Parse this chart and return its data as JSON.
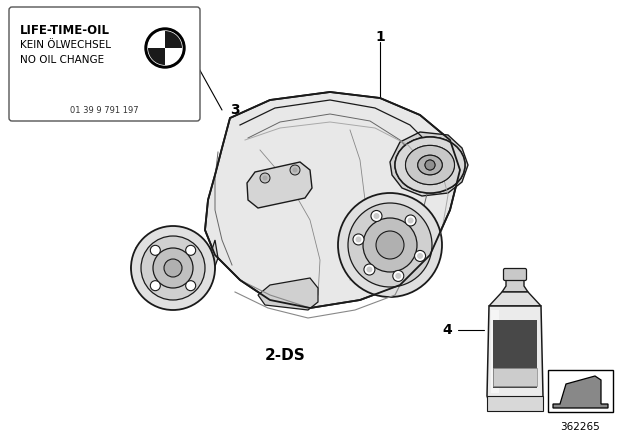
{
  "bg_color": "#ffffff",
  "sticker_title": "LIFE-TIME-OIL",
  "sticker_line1": "KEIN ÖLWECHSEL",
  "sticker_line2": "NO OIL CHANGE",
  "sticker_num": "01 39 9 791 197",
  "label_1": "1",
  "label_2": "2-DS",
  "label_3": "3",
  "label_4": "4",
  "part_number": "362265",
  "fig_width": 6.4,
  "fig_height": 4.48,
  "dpi": 100
}
